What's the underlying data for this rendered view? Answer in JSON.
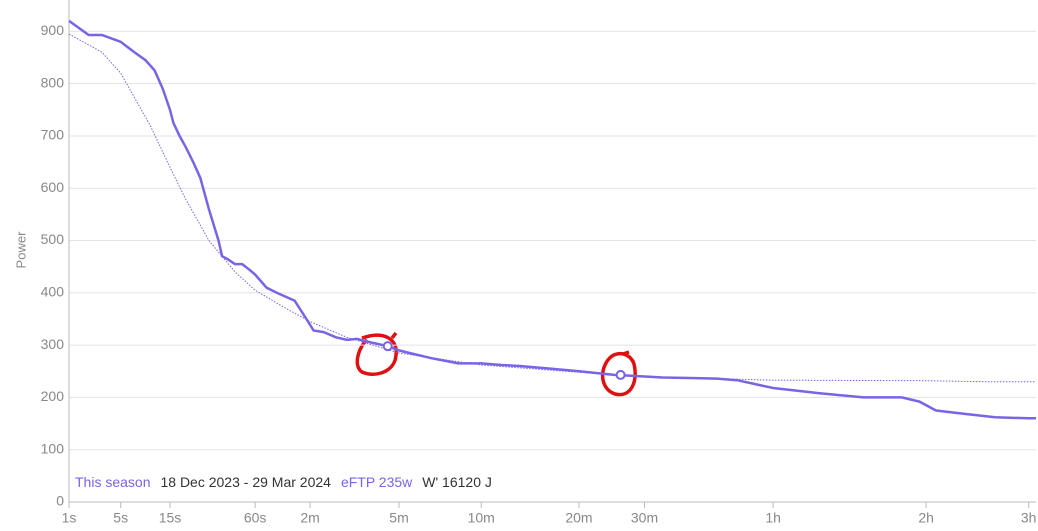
{
  "chart_data": {
    "type": "line",
    "ylabel": "Power",
    "xscale": "pow",
    "xexponent": 0.25,
    "xlim": [
      1,
      11100
    ],
    "ylim": [
      0,
      960
    ],
    "yticks": [
      0,
      100,
      200,
      300,
      400,
      500,
      600,
      700,
      800,
      900
    ],
    "xticks": [
      {
        "value": 1,
        "label": "1s"
      },
      {
        "value": 5,
        "label": "5s"
      },
      {
        "value": 15,
        "label": "15s"
      },
      {
        "value": 60,
        "label": "60s"
      },
      {
        "value": 120,
        "label": "2m"
      },
      {
        "value": 300,
        "label": "5m"
      },
      {
        "value": 600,
        "label": "10m"
      },
      {
        "value": 1200,
        "label": "20m"
      },
      {
        "value": 1800,
        "label": "30m"
      },
      {
        "value": 3600,
        "label": "1h"
      },
      {
        "value": 7200,
        "label": "2h"
      },
      {
        "value": 10800,
        "label": "3h"
      }
    ],
    "grid": true,
    "series": [
      {
        "name": "This season",
        "color": "#7b63e6",
        "style": "solid",
        "x": [
          1,
          2,
          3,
          5,
          7,
          9,
          10,
          11,
          13,
          15,
          16,
          18,
          20,
          23,
          26,
          30,
          35,
          37,
          40,
          45,
          50,
          55,
          60,
          70,
          80,
          100,
          115,
          125,
          140,
          160,
          180,
          200,
          230,
          270,
          300,
          330,
          400,
          500,
          600,
          700,
          800,
          1000,
          1200,
          1500,
          1800,
          2000,
          2400,
          2700,
          3000,
          3600,
          4500,
          5500,
          6500,
          7000,
          7500,
          8500,
          9500,
          10800,
          11100
        ],
        "values": [
          920,
          893,
          893,
          880,
          860,
          845,
          835,
          825,
          790,
          750,
          725,
          700,
          680,
          650,
          620,
          560,
          500,
          470,
          465,
          455,
          455,
          445,
          435,
          410,
          400,
          385,
          350,
          328,
          325,
          315,
          310,
          312,
          305,
          298,
          290,
          285,
          275,
          265,
          265,
          262,
          260,
          255,
          250,
          243,
          240,
          238,
          237,
          236,
          233,
          218,
          208,
          200,
          200,
          192,
          175,
          168,
          162,
          160,
          160
        ]
      },
      {
        "color": "#7b63e6",
        "style": "dotted",
        "x": [
          1,
          3,
          5,
          10,
          15,
          20,
          30,
          45,
          60,
          90,
          120,
          180,
          300,
          600,
          1200,
          1800,
          3600,
          7200,
          9000,
          11100
        ],
        "values": [
          895,
          860,
          820,
          720,
          640,
          580,
          500,
          440,
          405,
          370,
          345,
          315,
          285,
          262,
          248,
          240,
          233,
          232,
          230,
          230
        ]
      }
    ],
    "markers": {
      "x": [
        270,
        1560
      ],
      "values": [
        298,
        243
      ]
    },
    "annotations": [
      "This season",
      "18 Dec 2023 - 29 Mar 2024",
      "eFTP 235w",
      "W' 16120 J"
    ]
  }
}
